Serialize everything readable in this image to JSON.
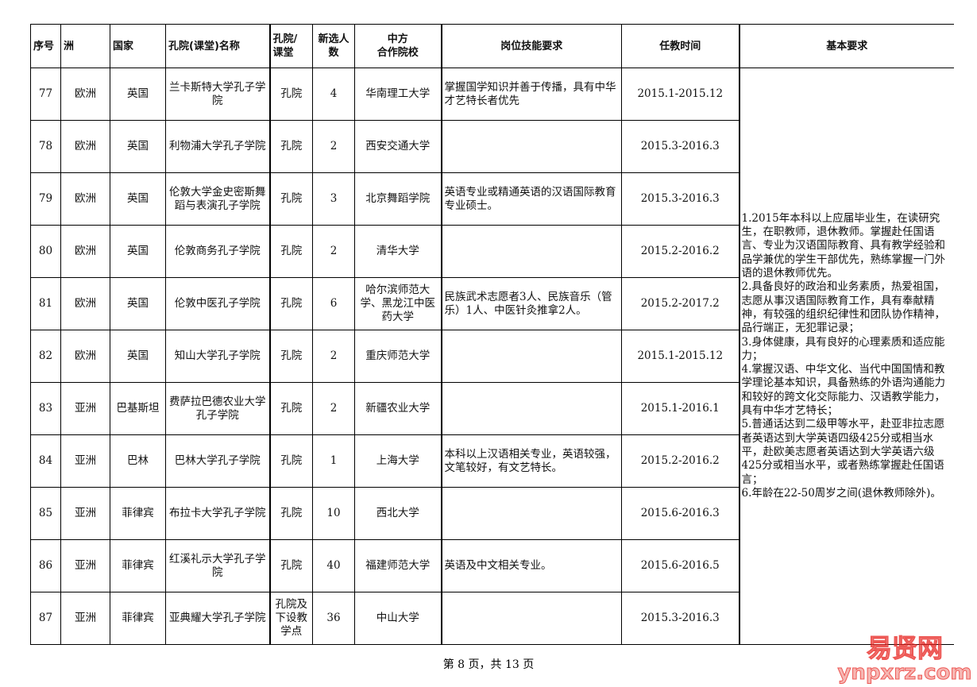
{
  "headers": [
    "序号",
    "洲",
    "国家",
    "孔院(课堂)名称",
    "孔院/\n课堂",
    "新选人\n数",
    "中方\n合作院校",
    "岗位技能要求",
    "任教时间",
    "基本要求"
  ],
  "rows": [
    {
      "no": "77",
      "continent": "欧洲",
      "country": "英国",
      "name": "兰卡斯特大学孔子学院",
      "type": "孔院",
      "count": "4",
      "partner": "华南理工大学",
      "skills": "掌握国学知识并善于传播，具有中华才艺特长者优先",
      "period": "2015.1-2015.12"
    },
    {
      "no": "78",
      "continent": "欧洲",
      "country": "英国",
      "name": "利物浦大学孔子学院",
      "type": "孔院",
      "count": "2",
      "partner": "西安交通大学",
      "skills": "",
      "period": "2015.3-2016.3"
    },
    {
      "no": "79",
      "continent": "欧洲",
      "country": "英国",
      "name": "伦敦大学金史密斯舞蹈与表演孔子学院",
      "type": "孔院",
      "count": "3",
      "partner": "北京舞蹈学院",
      "skills": "英语专业或精通英语的汉语国际教育专业硕士。",
      "period": "2015.3-2016.3"
    },
    {
      "no": "80",
      "continent": "欧洲",
      "country": "英国",
      "name": "伦敦商务孔子学院",
      "type": "孔院",
      "count": "2",
      "partner": "清华大学",
      "skills": "",
      "period": "2015.2-2016.2"
    },
    {
      "no": "81",
      "continent": "欧洲",
      "country": "英国",
      "name": "伦敦中医孔子学院",
      "type": "孔院",
      "count": "6",
      "partner": "哈尔滨师范大学、黑龙江中医药大学",
      "skills": "民族武术志愿者3人、民族音乐（管乐）1人、中医针灸推拿2人。",
      "period": "2015.2-2017.2"
    },
    {
      "no": "82",
      "continent": "欧洲",
      "country": "英国",
      "name": "知山大学孔子学院",
      "type": "孔院",
      "count": "2",
      "partner": "重庆师范大学",
      "skills": "",
      "period": "2015.1-2015.12"
    },
    {
      "no": "83",
      "continent": "亚洲",
      "country": "巴基斯坦",
      "name": "费萨拉巴德农业大学孔子学院",
      "type": "孔院",
      "count": "2",
      "partner": "新疆农业大学",
      "skills": "",
      "period": "2015.1-2016.1"
    },
    {
      "no": "84",
      "continent": "亚洲",
      "country": "巴林",
      "name": "巴林大学孔子学院",
      "type": "孔院",
      "count": "1",
      "partner": "上海大学",
      "skills": "本科以上汉语相关专业，英语较强，文笔较好，有文艺特长。",
      "period": "2015.2-2016.2"
    },
    {
      "no": "85",
      "continent": "亚洲",
      "country": "菲律宾",
      "name": "布拉卡大学孔子学院",
      "type": "孔院",
      "count": "10",
      "partner": "西北大学",
      "skills": "",
      "period": "2015.6-2016.3"
    },
    {
      "no": "86",
      "continent": "亚洲",
      "country": "菲律宾",
      "name": "红溪礼示大学孔子学院",
      "type": "孔院",
      "count": "40",
      "partner": "福建师范大学",
      "skills": "英语及中文相关专业。",
      "period": "2015.6-2016.5"
    },
    {
      "no": "87",
      "continent": "亚洲",
      "country": "菲律宾",
      "name": "亚典耀大学孔子学院",
      "type": "孔院及下设教学点",
      "count": "36",
      "partner": "中山大学",
      "skills": "",
      "period": "2015.3-2016.3"
    }
  ],
  "basic_requirements": "1.2015年本科以上应届毕业生，在读研究生，在职教师，退休教师。掌握赴任国语言、专业为汉语国际教育、具有教学经验和品学兼优的学生干部优先，熟练掌握一门外语的退休教师优先。\n2.具备良好的政治和业务素质，热爱祖国，志愿从事汉语国际教育工作，具有奉献精神，有较强的组织纪律性和团队协作精神，品行端正，无犯罪记录；\n3.身体健康，具有良好的心理素质和适应能力；\n4.掌握汉语、中华文化、当代中国国情和教学理论基本知识，具备熟练的外语沟通能力和较好的跨文化交际能力、汉语教学能力，具有中华才艺特长；\n5.普通话达到二级甲等水平，赴亚非拉志愿者英语达到大学英语四级425分或相当水平，赴欧美志愿者英语达到大学英语六级425分或相当水平，或者熟练掌握赴任国语言；\n6.年龄在22-50周岁之间(退休教师除外)。",
  "footer": "第 8 页，共 13 页",
  "watermark": {
    "text": "易贤网",
    "url_text": "ynpxrz.com",
    "color": "#e8201c"
  }
}
